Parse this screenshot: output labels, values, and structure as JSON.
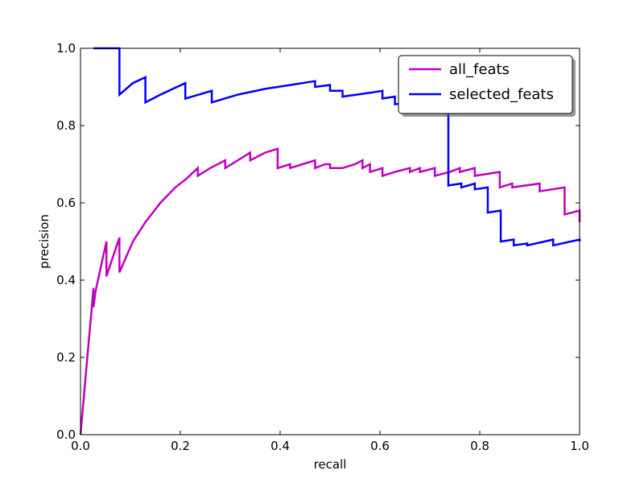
{
  "chart_data": {
    "type": "line",
    "title": "",
    "xlabel": "recall",
    "ylabel": "precision",
    "xlim": [
      0.0,
      1.0
    ],
    "ylim": [
      0.0,
      1.0
    ],
    "xticks": [
      "0.0",
      "0.2",
      "0.4",
      "0.6",
      "0.8",
      "1.0"
    ],
    "yticks": [
      "0.0",
      "0.2",
      "0.4",
      "0.6",
      "0.8",
      "1.0"
    ],
    "grid": false,
    "legend_position": "top-right",
    "series": [
      {
        "name": "all_feats",
        "color": "#bf00bf",
        "points": [
          [
            0.0,
            0.0
          ],
          [
            0.013,
            0.19
          ],
          [
            0.022,
            0.32
          ],
          [
            0.026,
            0.38
          ],
          [
            0.026,
            0.33
          ],
          [
            0.03,
            0.37
          ],
          [
            0.04,
            0.43
          ],
          [
            0.052,
            0.5
          ],
          [
            0.052,
            0.41
          ],
          [
            0.065,
            0.46
          ],
          [
            0.078,
            0.51
          ],
          [
            0.078,
            0.42
          ],
          [
            0.105,
            0.5
          ],
          [
            0.13,
            0.55
          ],
          [
            0.16,
            0.6
          ],
          [
            0.19,
            0.64
          ],
          [
            0.21,
            0.66
          ],
          [
            0.235,
            0.69
          ],
          [
            0.235,
            0.67
          ],
          [
            0.26,
            0.69
          ],
          [
            0.29,
            0.71
          ],
          [
            0.29,
            0.69
          ],
          [
            0.315,
            0.71
          ],
          [
            0.34,
            0.73
          ],
          [
            0.34,
            0.71
          ],
          [
            0.37,
            0.73
          ],
          [
            0.395,
            0.74
          ],
          [
            0.395,
            0.69
          ],
          [
            0.42,
            0.7
          ],
          [
            0.42,
            0.69
          ],
          [
            0.445,
            0.7
          ],
          [
            0.47,
            0.71
          ],
          [
            0.47,
            0.69
          ],
          [
            0.49,
            0.7
          ],
          [
            0.5,
            0.7
          ],
          [
            0.5,
            0.69
          ],
          [
            0.525,
            0.69
          ],
          [
            0.55,
            0.7
          ],
          [
            0.565,
            0.71
          ],
          [
            0.565,
            0.69
          ],
          [
            0.58,
            0.7
          ],
          [
            0.58,
            0.68
          ],
          [
            0.605,
            0.69
          ],
          [
            0.605,
            0.67
          ],
          [
            0.63,
            0.68
          ],
          [
            0.66,
            0.69
          ],
          [
            0.66,
            0.68
          ],
          [
            0.68,
            0.69
          ],
          [
            0.68,
            0.68
          ],
          [
            0.71,
            0.69
          ],
          [
            0.71,
            0.67
          ],
          [
            0.74,
            0.68
          ],
          [
            0.76,
            0.69
          ],
          [
            0.76,
            0.68
          ],
          [
            0.79,
            0.69
          ],
          [
            0.79,
            0.67
          ],
          [
            0.84,
            0.68
          ],
          [
            0.84,
            0.64
          ],
          [
            0.865,
            0.65
          ],
          [
            0.865,
            0.64
          ],
          [
            0.92,
            0.65
          ],
          [
            0.92,
            0.63
          ],
          [
            0.97,
            0.64
          ],
          [
            0.97,
            0.57
          ],
          [
            1.0,
            0.58
          ],
          [
            1.0,
            0.55
          ]
        ]
      },
      {
        "name": "selected_feats",
        "color": "#0000ff",
        "points": [
          [
            0.026,
            1.0
          ],
          [
            0.078,
            1.0
          ],
          [
            0.078,
            0.88
          ],
          [
            0.105,
            0.91
          ],
          [
            0.13,
            0.925
          ],
          [
            0.13,
            0.86
          ],
          [
            0.16,
            0.88
          ],
          [
            0.21,
            0.91
          ],
          [
            0.21,
            0.87
          ],
          [
            0.263,
            0.89
          ],
          [
            0.263,
            0.86
          ],
          [
            0.315,
            0.88
          ],
          [
            0.37,
            0.895
          ],
          [
            0.42,
            0.905
          ],
          [
            0.47,
            0.915
          ],
          [
            0.47,
            0.9
          ],
          [
            0.5,
            0.905
          ],
          [
            0.5,
            0.89
          ],
          [
            0.525,
            0.89
          ],
          [
            0.525,
            0.875
          ],
          [
            0.58,
            0.885
          ],
          [
            0.605,
            0.89
          ],
          [
            0.605,
            0.87
          ],
          [
            0.63,
            0.875
          ],
          [
            0.63,
            0.855
          ],
          [
            0.68,
            0.865
          ],
          [
            0.71,
            0.87
          ],
          [
            0.737,
            0.86
          ],
          [
            0.737,
            0.645
          ],
          [
            0.763,
            0.65
          ],
          [
            0.763,
            0.64
          ],
          [
            0.79,
            0.65
          ],
          [
            0.79,
            0.635
          ],
          [
            0.816,
            0.64
          ],
          [
            0.816,
            0.575
          ],
          [
            0.842,
            0.58
          ],
          [
            0.842,
            0.5
          ],
          [
            0.868,
            0.505
          ],
          [
            0.868,
            0.49
          ],
          [
            0.895,
            0.495
          ],
          [
            0.895,
            0.49
          ],
          [
            0.947,
            0.505
          ],
          [
            0.947,
            0.49
          ],
          [
            1.0,
            0.505
          ],
          [
            1.0,
            0.5
          ]
        ]
      }
    ]
  }
}
